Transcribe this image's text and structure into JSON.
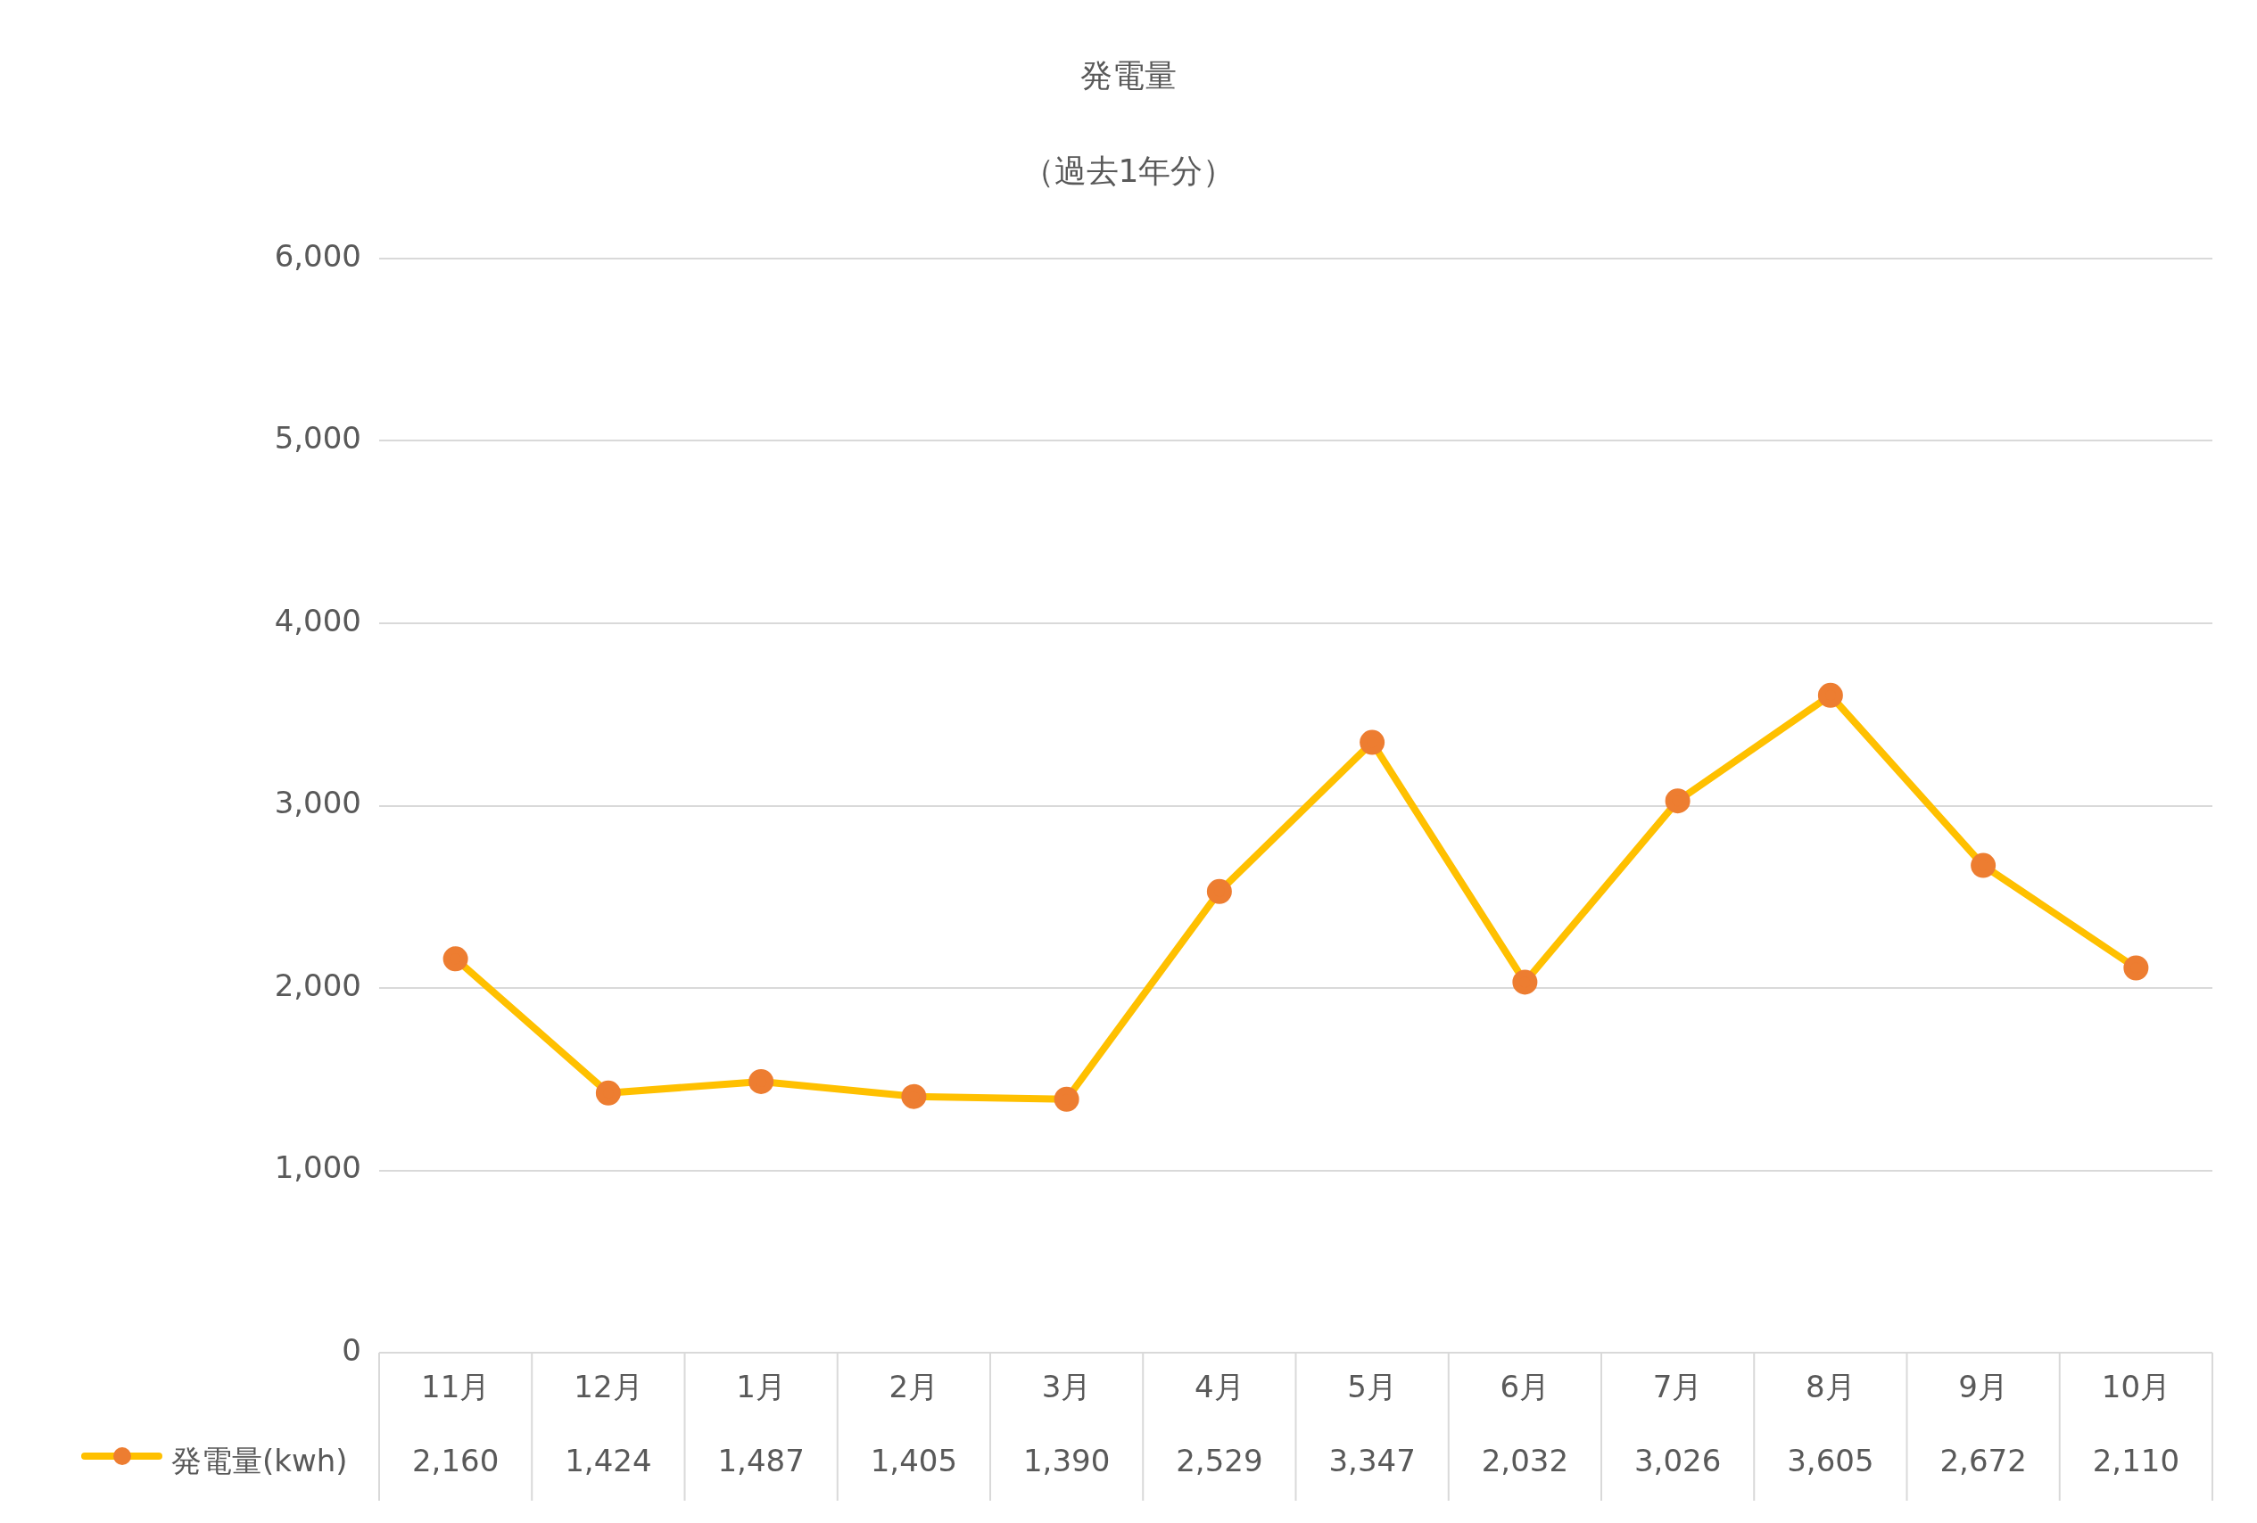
{
  "chart_data": {
    "type": "line",
    "title": "発電量",
    "subtitle": "（過去1年分）",
    "categories": [
      "11月",
      "12月",
      "1月",
      "2月",
      "3月",
      "4月",
      "5月",
      "6月",
      "7月",
      "8月",
      "9月",
      "10月"
    ],
    "series": [
      {
        "name": "発電量(kwh)",
        "color": "#ffc000",
        "colors": [
          "#ed7d31",
          "#ed7d31",
          "#ed7d31",
          "#ed7d31",
          "#ed7d31",
          "#ed7d31",
          "#ed7d31",
          "#ed7d31",
          "#ed7d31",
          "#ed7d31",
          "#ed7d31",
          "#ed7d31"
        ],
        "values": [
          2160,
          1424,
          1487,
          1405,
          1390,
          2529,
          3347,
          2032,
          3026,
          3605,
          2672,
          2110
        ],
        "value_labels": [
          "2,160",
          "1,424",
          "1,487",
          "1,405",
          "1,390",
          "2,529",
          "3,347",
          "2,032",
          "3,026",
          "3,605",
          "2,672",
          "2,110"
        ]
      }
    ],
    "ylim": [
      0,
      6000
    ],
    "yticks": [
      {
        "value": 0,
        "label": "0"
      },
      {
        "value": 1000,
        "label": "1,000"
      },
      {
        "value": 2000,
        "label": "2,000"
      },
      {
        "value": 3000,
        "label": "3,000"
      },
      {
        "value": 4000,
        "label": "4,000"
      },
      {
        "value": 5000,
        "label": "5,000"
      },
      {
        "value": 6000,
        "label": "6,000"
      }
    ],
    "grid": "y",
    "legend": "bottom",
    "marker": "circle",
    "line_style": "solid"
  }
}
